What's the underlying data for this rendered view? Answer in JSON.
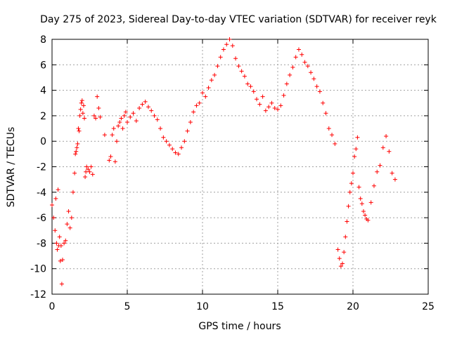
{
  "chart_data": {
    "type": "scatter",
    "title": "Day 275 of 2023, Sidereal Day-to-day VTEC variation (SDTVAR) for receiver reyk",
    "xlabel": "GPS time / hours",
    "ylabel": "SDTVAR / TECUs",
    "xlim": [
      0,
      25
    ],
    "ylim": [
      -12,
      8
    ],
    "xticks": [
      0,
      5,
      10,
      15,
      20,
      25
    ],
    "yticks": [
      -12,
      -10,
      -8,
      -6,
      -4,
      -2,
      0,
      2,
      4,
      6,
      8
    ],
    "xtick_labels": [
      "0",
      "5",
      "10",
      "15",
      "20",
      "25"
    ],
    "ytick_labels": [
      "-12",
      "-10",
      "-8",
      "-6",
      "-4",
      "-2",
      "0",
      "2",
      "4",
      "6",
      "8"
    ],
    "grid": true,
    "marker": "+",
    "colors": {
      "series": "#ff0000",
      "grid": "#a0a0a0",
      "axis": "#000000"
    },
    "series": [
      {
        "name": "reyk",
        "x": [
          0.0,
          0.1,
          0.2,
          0.25,
          0.3,
          0.35,
          0.4,
          0.45,
          0.5,
          0.55,
          0.6,
          0.65,
          0.7,
          0.8,
          0.9,
          1.0,
          1.1,
          1.2,
          1.3,
          1.4,
          1.5,
          1.55,
          1.6,
          1.65,
          1.7,
          1.75,
          1.8,
          1.85,
          1.9,
          1.95,
          2.0,
          2.05,
          2.1,
          2.15,
          2.2,
          2.25,
          2.3,
          2.4,
          2.5,
          2.6,
          2.7,
          2.8,
          2.9,
          3.0,
          3.1,
          3.2,
          3.5,
          3.8,
          3.9,
          4.0,
          4.1,
          4.2,
          4.3,
          4.4,
          4.5,
          4.6,
          4.7,
          4.8,
          4.9,
          5.0,
          5.2,
          5.4,
          5.6,
          5.8,
          6.0,
          6.2,
          6.4,
          6.6,
          6.8,
          7.0,
          7.2,
          7.4,
          7.6,
          7.8,
          8.0,
          8.2,
          8.4,
          8.6,
          8.8,
          9.0,
          9.2,
          9.4,
          9.6,
          9.8,
          10.0,
          10.2,
          10.4,
          10.6,
          10.8,
          11.0,
          11.2,
          11.4,
          11.6,
          11.8,
          12.0,
          12.2,
          12.4,
          12.6,
          12.8,
          13.0,
          13.2,
          13.4,
          13.6,
          13.8,
          14.0,
          14.2,
          14.4,
          14.6,
          14.8,
          15.0,
          15.2,
          15.4,
          15.6,
          15.8,
          16.0,
          16.2,
          16.4,
          16.6,
          16.8,
          17.0,
          17.2,
          17.4,
          17.6,
          17.8,
          18.0,
          18.2,
          18.4,
          18.6,
          18.8,
          19.0,
          19.1,
          19.2,
          19.3,
          19.4,
          19.5,
          19.6,
          19.7,
          19.8,
          19.9,
          20.0,
          20.1,
          20.2,
          20.3,
          20.4,
          20.5,
          20.6,
          20.7,
          20.8,
          20.9,
          21.0,
          21.2,
          21.4,
          21.6,
          21.8,
          22.0,
          22.2,
          22.4,
          22.6,
          22.8
        ],
        "y": [
          -5.0,
          -6.0,
          -7.0,
          -4.5,
          -8.0,
          -8.5,
          -3.8,
          -8.2,
          -7.5,
          -9.4,
          -8.2,
          -11.2,
          -9.3,
          -8.0,
          -7.8,
          -6.5,
          -5.5,
          -6.8,
          -6.0,
          -4.0,
          -2.5,
          -1.0,
          -0.8,
          -0.5,
          -0.2,
          1.0,
          0.8,
          2.0,
          2.5,
          3.0,
          3.2,
          2.2,
          2.8,
          1.8,
          -2.8,
          -2.4,
          -2.0,
          -2.2,
          -2.4,
          -2.0,
          -2.6,
          2.0,
          1.8,
          3.5,
          2.6,
          1.9,
          0.5,
          -1.5,
          -1.2,
          0.5,
          1.0,
          -1.6,
          0.0,
          1.2,
          1.5,
          1.8,
          1.0,
          2.0,
          2.3,
          1.5,
          1.9,
          2.2,
          1.6,
          2.6,
          2.9,
          3.1,
          2.7,
          2.4,
          2.0,
          1.7,
          1.0,
          0.3,
          0.0,
          -0.3,
          -0.6,
          -0.9,
          -1.0,
          -0.5,
          0.0,
          0.8,
          1.5,
          2.3,
          2.8,
          3.0,
          3.8,
          3.5,
          4.2,
          4.8,
          5.2,
          5.9,
          6.6,
          7.2,
          7.6,
          8.0,
          7.5,
          6.5,
          5.9,
          5.5,
          5.1,
          4.5,
          4.3,
          3.9,
          3.3,
          2.9,
          3.5,
          2.4,
          2.7,
          3.0,
          2.6,
          2.5,
          2.8,
          3.6,
          4.5,
          5.2,
          5.8,
          6.6,
          7.2,
          6.8,
          6.2,
          5.9,
          5.4,
          4.9,
          4.3,
          3.9,
          3.0,
          2.2,
          1.0,
          0.5,
          -0.2,
          -8.5,
          -9.2,
          -9.8,
          -9.6,
          -8.7,
          -7.5,
          -6.3,
          -5.1,
          -4.0,
          -3.3,
          -2.5,
          -1.2,
          -0.6,
          0.3,
          -3.6,
          -4.5,
          -4.9,
          -5.5,
          -5.8,
          -6.1,
          -6.2,
          -4.8,
          -3.5,
          -2.4,
          -1.9,
          -0.5,
          0.4,
          -0.8,
          -2.5,
          -3.0
        ]
      }
    ]
  }
}
